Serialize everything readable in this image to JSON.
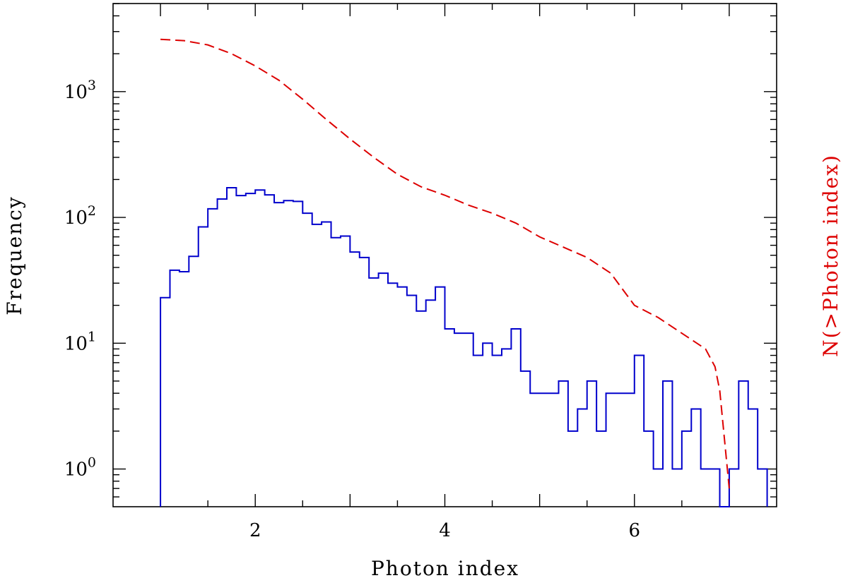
{
  "chart_data": {
    "type": "line",
    "xlabel": "Photon index",
    "ylabel": "Frequency",
    "y2label": "N(>Photon index)",
    "xlim": [
      0.5,
      7.5
    ],
    "ylim_log10": [
      -0.3,
      3.7
    ],
    "y_scale": "log",
    "grid": false,
    "x_ticks": [
      {
        "value": 2,
        "label": "2"
      },
      {
        "value": 4,
        "label": "4"
      },
      {
        "value": 6,
        "label": "6"
      }
    ],
    "y_ticks": [
      {
        "exp": 0,
        "base": "10",
        "sup": "0"
      },
      {
        "exp": 1,
        "base": "10",
        "sup": "1"
      },
      {
        "exp": 2,
        "base": "10",
        "sup": "2"
      },
      {
        "exp": 3,
        "base": "10",
        "sup": "3"
      }
    ],
    "colors": {
      "histogram": "#0000cc",
      "cumulative": "#dd0000"
    },
    "histogram": {
      "bin_start": 1.0,
      "bin_width": 0.1,
      "counts": [
        23,
        38,
        37,
        49,
        84,
        117,
        140,
        172,
        149,
        155,
        165,
        151,
        131,
        136,
        134,
        108,
        88,
        92,
        69,
        71,
        53,
        48,
        33,
        36,
        30,
        28,
        24,
        18,
        22,
        28,
        13,
        12,
        12,
        8,
        10,
        8,
        9,
        13,
        6,
        4,
        4,
        4,
        5,
        2,
        3,
        5,
        2,
        4,
        4,
        4,
        8,
        2,
        1,
        5,
        1,
        2,
        3,
        1,
        1,
        0,
        1,
        5,
        3,
        1
      ]
    },
    "cumulative": {
      "x": [
        1.0,
        1.25,
        1.5,
        1.75,
        2.0,
        2.25,
        2.5,
        2.75,
        3.0,
        3.25,
        3.5,
        3.75,
        4.0,
        4.25,
        4.5,
        4.75,
        5.0,
        5.25,
        5.5,
        5.75,
        6.0,
        6.25,
        6.5,
        6.75,
        6.85,
        6.9,
        7.0
      ],
      "y": [
        2600,
        2540,
        2350,
        2000,
        1600,
        1230,
        870,
        600,
        420,
        300,
        220,
        175,
        150,
        125,
        108,
        90,
        70,
        58,
        48,
        36,
        20,
        16,
        12,
        9,
        6.5,
        4.2,
        0.7
      ]
    }
  }
}
